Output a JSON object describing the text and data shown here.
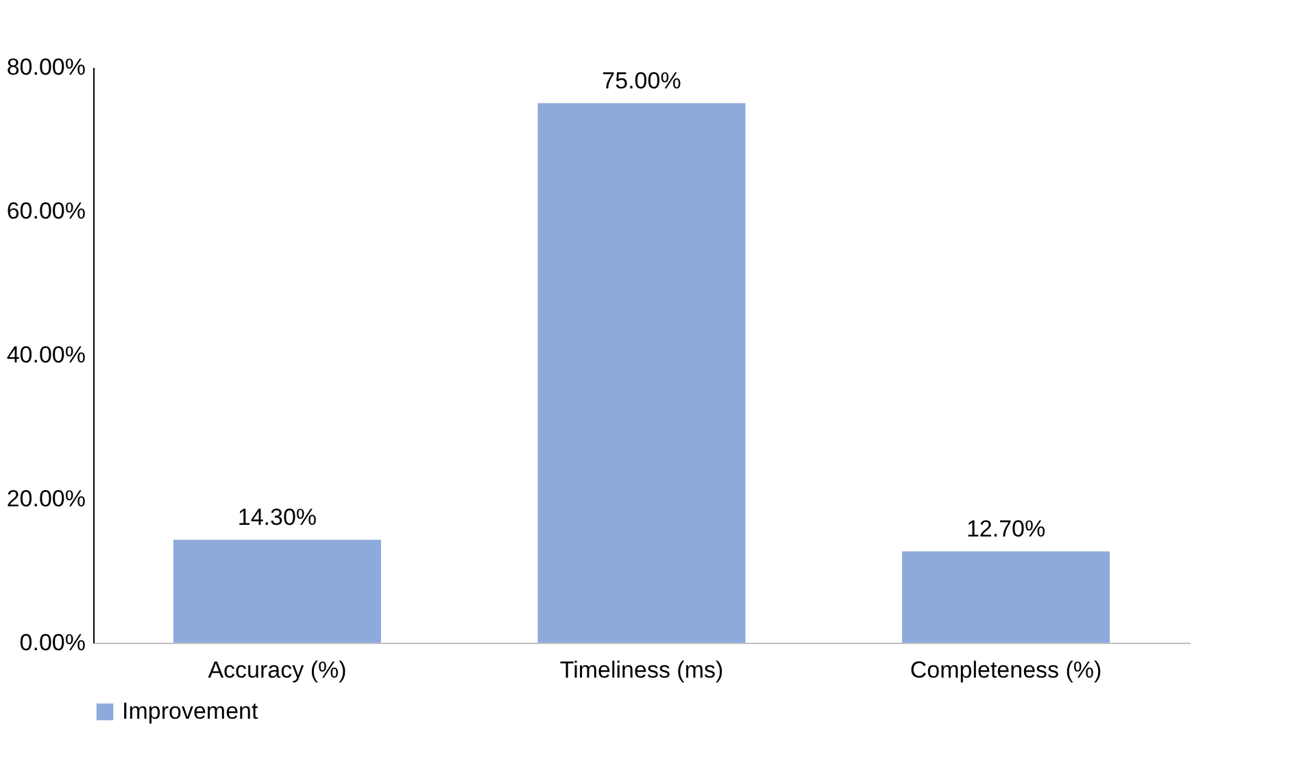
{
  "chart_data": {
    "type": "bar",
    "categories": [
      "Accuracy (%)",
      "Timeliness (ms)",
      "Completeness (%)"
    ],
    "series": [
      {
        "name": "Improvement",
        "color": "#8eaadb",
        "values": [
          14.3,
          75,
          12.7
        ],
        "value_labels": [
          "14.30%",
          "75.00%",
          "12.70%"
        ]
      }
    ],
    "ylim": [
      0,
      80
    ],
    "yticks": [
      {
        "value": 0,
        "label": "0.00%"
      },
      {
        "value": 20,
        "label": "20.00%"
      },
      {
        "value": 40,
        "label": "40.00%"
      },
      {
        "value": 60,
        "label": "60.00%"
      },
      {
        "value": 80,
        "label": "80.00%"
      }
    ],
    "grid": false,
    "legend": "bottom"
  }
}
